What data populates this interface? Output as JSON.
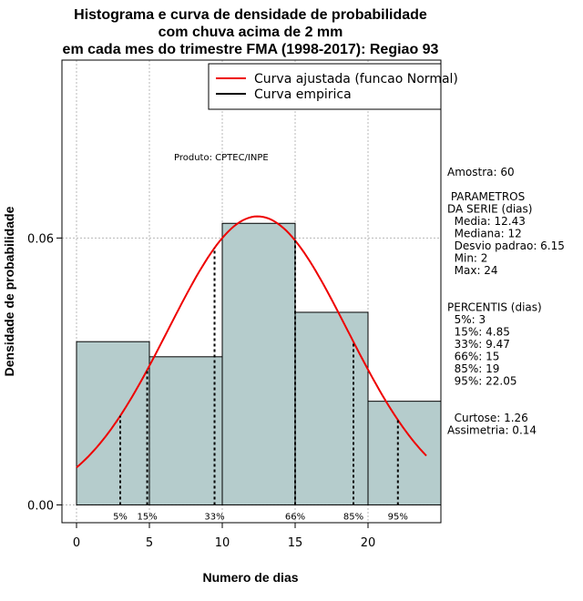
{
  "chart_data": {
    "type": "bar",
    "title_lines": [
      "Histograma e curva de densidade de probabilidade",
      "com chuva acima de 2 mm",
      "em cada mes do trimestre FMA (1998-2017): Regiao 93"
    ],
    "xlabel": "Numero de dias",
    "ylabel": "Densidade de probabilidade",
    "xlim": [
      -1,
      25
    ],
    "ylim": [
      -0.004,
      0.1
    ],
    "xticks": [
      0,
      5,
      10,
      15,
      20
    ],
    "yticks": [
      0.0,
      0.06
    ],
    "ytick_labels": [
      "0.00",
      "0.06"
    ],
    "grid": true,
    "bins": [
      {
        "start": 0,
        "end": 5,
        "density": 0.0367
      },
      {
        "start": 5,
        "end": 10,
        "density": 0.0333
      },
      {
        "start": 10,
        "end": 15,
        "density": 0.0633
      },
      {
        "start": 15,
        "end": 20,
        "density": 0.0433
      },
      {
        "start": 20,
        "end": 25,
        "density": 0.0233
      }
    ],
    "fit_curve": {
      "name": "Curva ajustada (funcao Normal)",
      "distribution": "normal",
      "mean": 12.43,
      "sd": 6.15,
      "x_range": [
        0,
        24
      ],
      "color": "#ee0000"
    },
    "empirical_curve": {
      "name": "Curva empirica",
      "color": "#000000"
    },
    "percentile_lines": [
      {
        "label": "5%",
        "x": 3
      },
      {
        "label": "15%",
        "x": 4.85
      },
      {
        "label": "33%",
        "x": 9.47
      },
      {
        "label": "66%",
        "x": 15
      },
      {
        "label": "85%",
        "x": 19
      },
      {
        "label": "95%",
        "x": 22.05
      }
    ],
    "legend": [
      "Curva ajustada (funcao Normal)",
      "Curva empirica"
    ],
    "legend_position": "top-right",
    "product_label": "Produto: CPTEC/INPE",
    "bar_color": "#b5cccc"
  },
  "stats_lines": [
    "Amostra: 60",
    "",
    " PARAMETROS",
    "DA SERIE (dias)",
    "  Media: 12.43",
    "  Mediana: 12",
    "  Desvio padrao: 6.15",
    "  Min: 2",
    "  Max: 24",
    "",
    "",
    "PERCENTIS (dias)",
    "  5%: 3",
    "  15%: 4.85",
    "  33%: 9.47",
    "  66%: 15",
    "  85%: 19",
    "  95%: 22.05",
    "",
    "",
    "  Curtose: 1.26",
    "Assimetria: 0.14"
  ]
}
